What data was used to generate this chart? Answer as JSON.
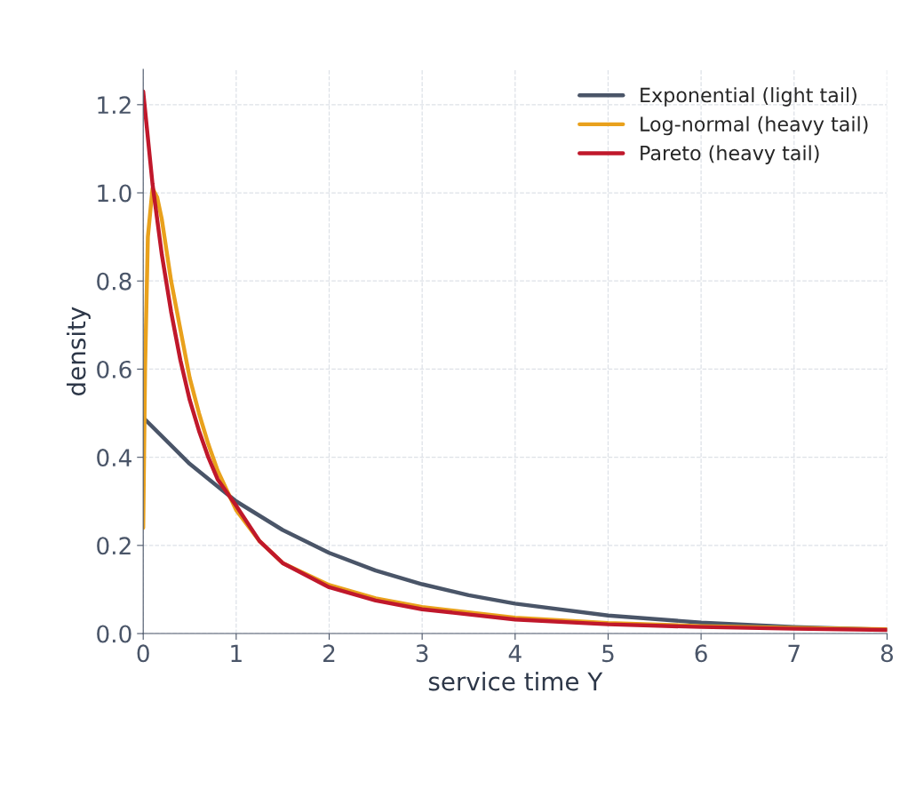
{
  "chart_data": {
    "type": "line",
    "xlabel": "service time Y",
    "ylabel": "density",
    "xlim": [
      0,
      8
    ],
    "ylim": [
      0,
      1.28
    ],
    "xticks": [
      0,
      1,
      2,
      3,
      4,
      5,
      6,
      7,
      8
    ],
    "yticks": [
      {
        "value": 0,
        "label": "0.0"
      },
      {
        "value": 0.2,
        "label": "0.2"
      },
      {
        "value": 0.4,
        "label": "0.4"
      },
      {
        "value": 0.6,
        "label": "0.6"
      },
      {
        "value": 0.8,
        "label": "0.8"
      },
      {
        "value": 1.0,
        "label": "1.0"
      },
      {
        "value": 1.2,
        "label": "1.2"
      }
    ],
    "grid": true,
    "legend": "top right",
    "line_style": "solid",
    "series": [
      {
        "name": "Exponential (light tail)",
        "color": "#4a5568",
        "x": [
          0,
          0.5,
          1,
          1.5,
          2,
          2.5,
          3,
          3.5,
          4,
          5,
          6,
          7,
          8
        ],
        "values": [
          0.49,
          0.385,
          0.3,
          0.235,
          0.183,
          0.143,
          0.112,
          0.087,
          0.068,
          0.041,
          0.025,
          0.015,
          0.009
        ]
      },
      {
        "name": "Log-normal (heavy tail)",
        "color": "#e9a11c",
        "x": [
          0,
          0.02,
          0.05,
          0.1,
          0.15,
          0.2,
          0.3,
          0.4,
          0.5,
          0.6,
          0.7,
          0.8,
          1,
          1.25,
          1.5,
          2,
          2.5,
          3,
          4,
          5,
          6,
          7,
          8
        ],
        "values": [
          0.24,
          0.6,
          0.9,
          1.01,
          0.99,
          0.94,
          0.8,
          0.69,
          0.58,
          0.5,
          0.43,
          0.37,
          0.28,
          0.21,
          0.16,
          0.11,
          0.08,
          0.06,
          0.036,
          0.024,
          0.017,
          0.013,
          0.01
        ]
      },
      {
        "name": "Pareto (heavy tail)",
        "color": "#c0182b",
        "x": [
          0,
          0.1,
          0.2,
          0.3,
          0.4,
          0.5,
          0.6,
          0.7,
          0.8,
          1,
          1.25,
          1.5,
          2,
          2.5,
          3,
          4,
          5,
          6,
          7,
          8
        ],
        "values": [
          1.23,
          1.02,
          0.86,
          0.73,
          0.62,
          0.53,
          0.46,
          0.4,
          0.35,
          0.29,
          0.21,
          0.16,
          0.105,
          0.075,
          0.055,
          0.032,
          0.021,
          0.015,
          0.011,
          0.008
        ]
      }
    ]
  }
}
